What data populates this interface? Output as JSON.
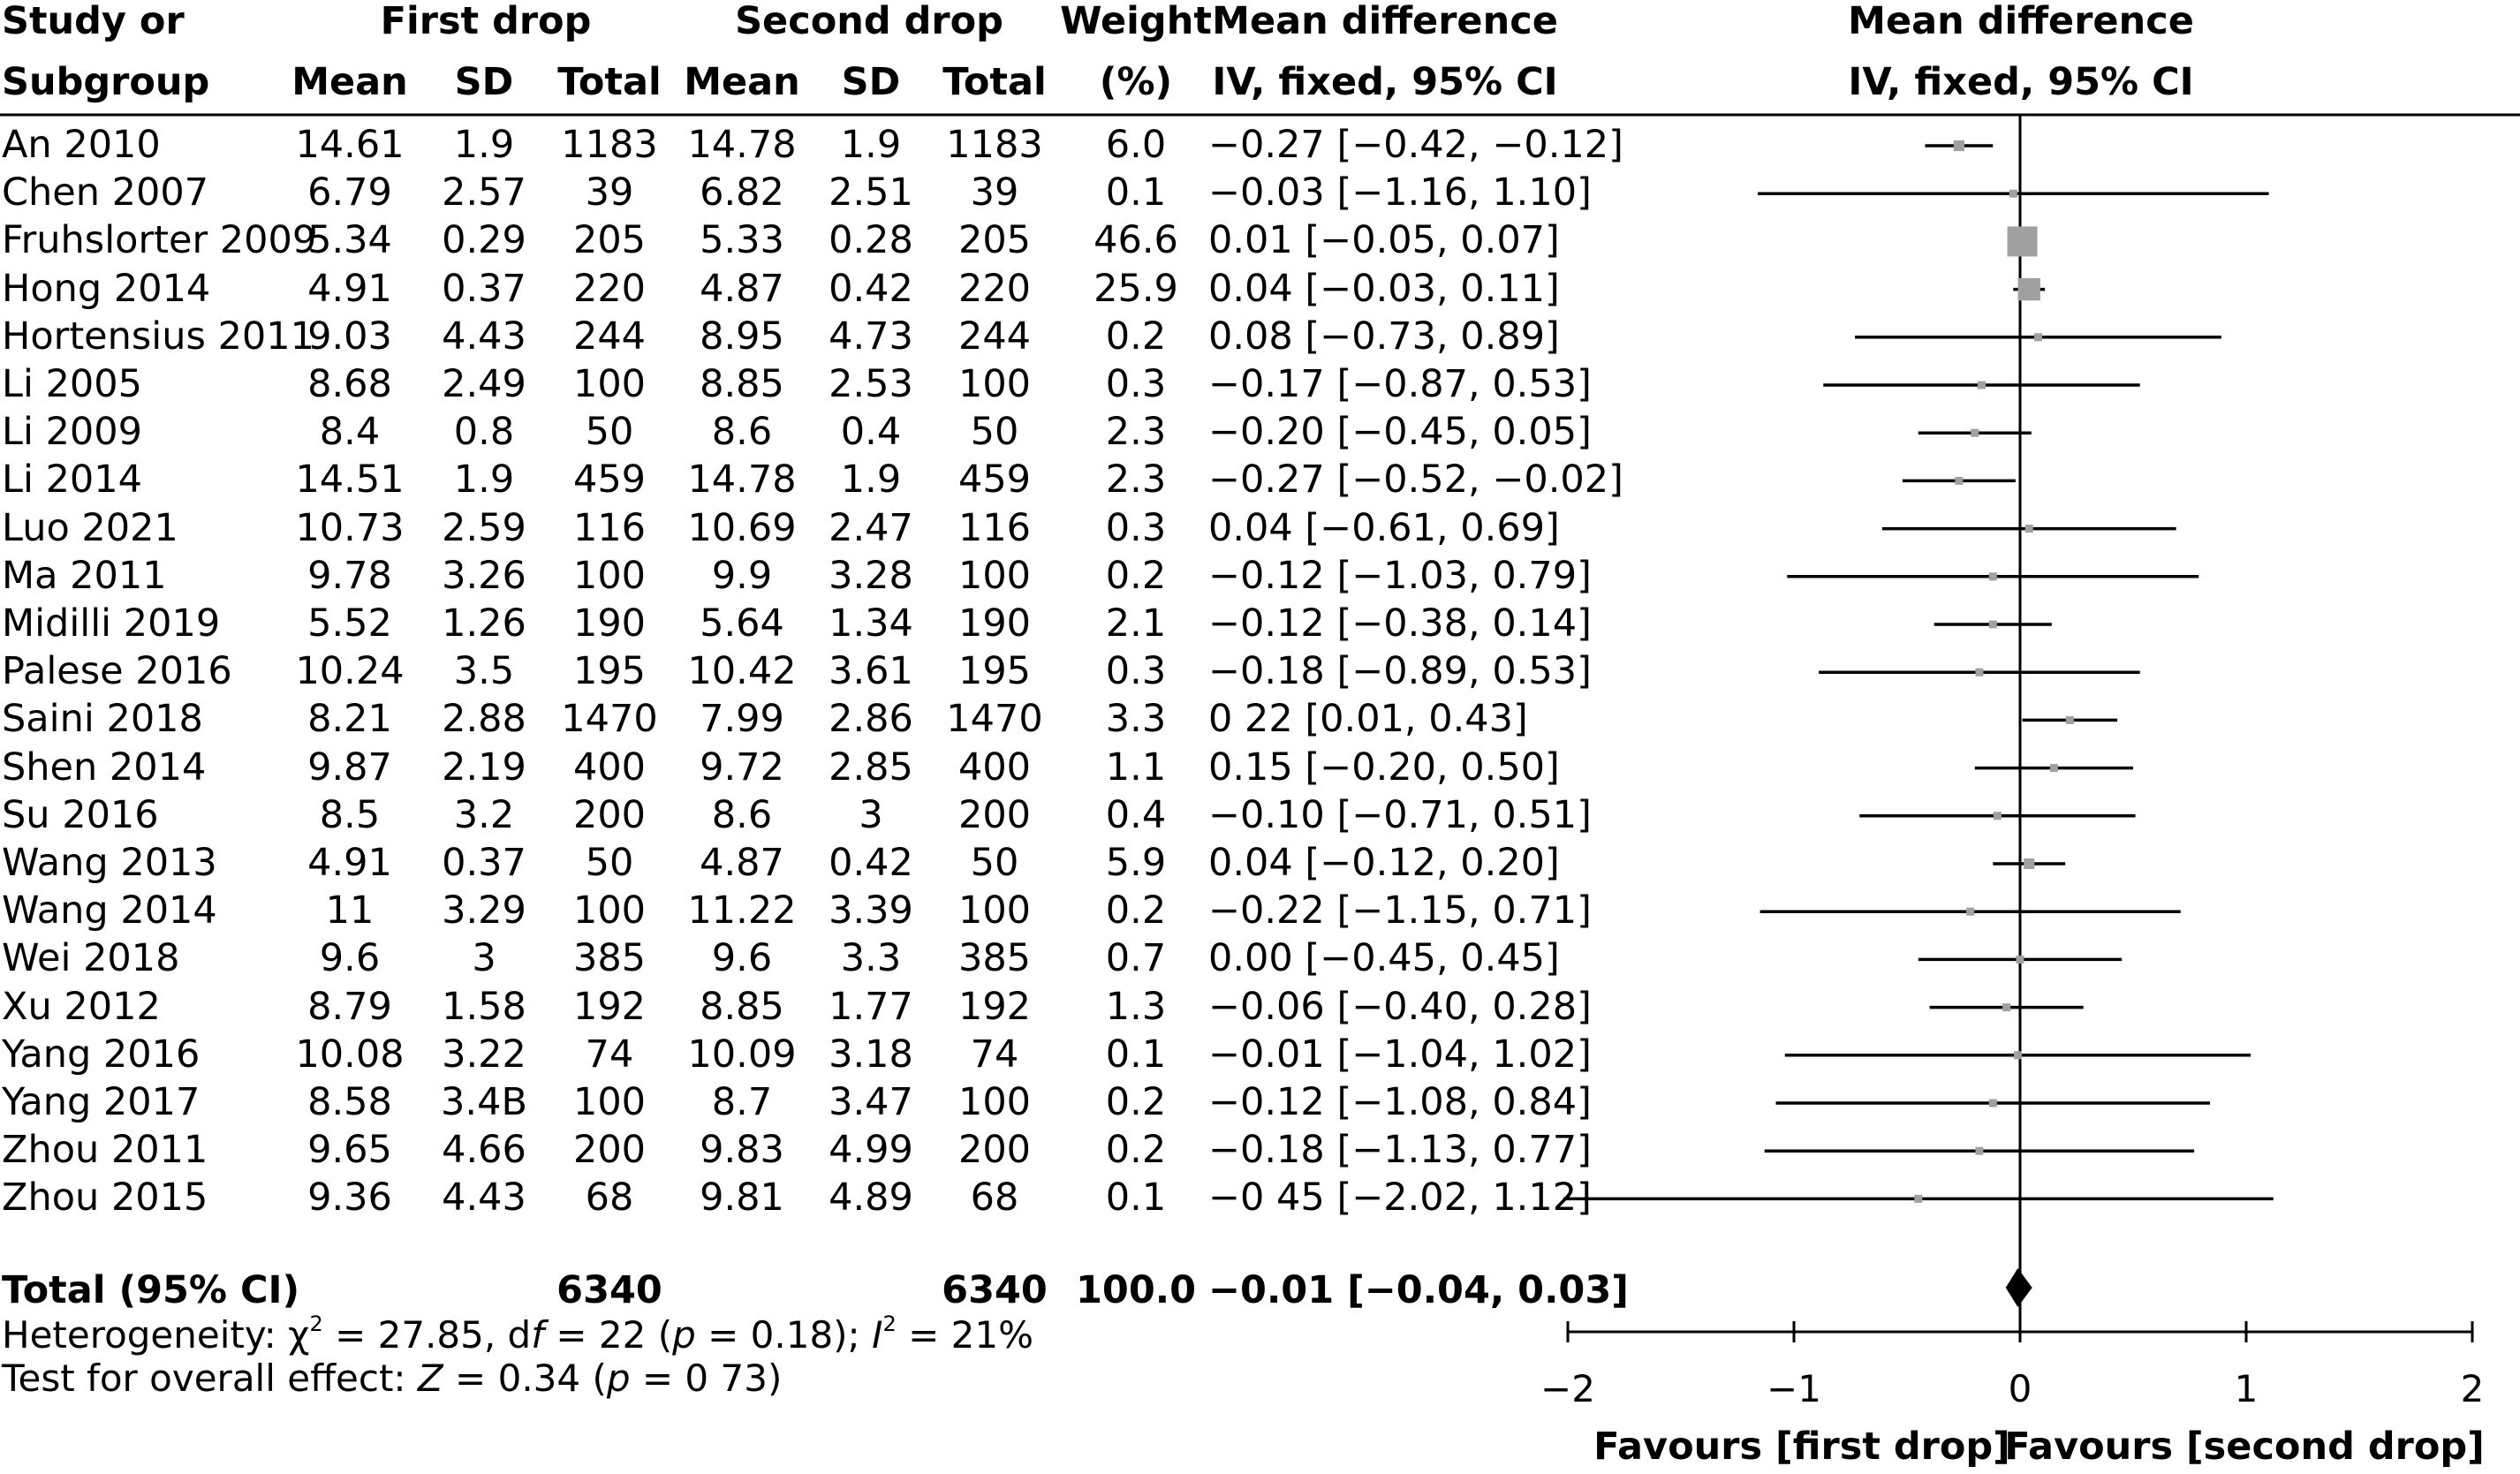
{
  "headers": {
    "study_1": "Study or",
    "study_2": "Subgroup",
    "first_drop": "First drop",
    "second_drop": "Second drop",
    "weight_1": "Weight",
    "weight_2": "(%)",
    "md_1": "Mean difference",
    "md_2": "IV, fixed, 95% CI",
    "plot_1": "Mean difference",
    "plot_2": "IV, fixed, 95% CI",
    "mean_a": "Mean",
    "sd_a": "SD",
    "total_a": "Total",
    "mean_b": "Mean",
    "sd_b": "SD",
    "total_b": "Total"
  },
  "total_row": {
    "label": "Total (95% CI)",
    "total_a": "6340",
    "total_b": "6340",
    "weight": "100.0",
    "ci": "−0.01 [−0.04, 0.03]"
  },
  "heterogeneity": {
    "prefix": "Heterogeneity: χ",
    "chi_sup": "2",
    "chi_value": " = 27.85, d",
    "f_italic": "f",
    "df_value": " = 22 (",
    "p_italic": "p",
    "p_value": " = 0.18); ",
    "i_italic": "I",
    "i_sup": "2",
    "i_value": " = 21%"
  },
  "overall": {
    "prefix": "Test for overall effect: ",
    "z_italic": "Z",
    "z_value": " = 0.34 (",
    "p_italic": "p",
    "p_value": " = 0 73)"
  },
  "axis_labels": {
    "left": "Favours [first drop]",
    "right": "Favours [second drop]"
  },
  "chart_data": {
    "type": "forest",
    "xlim": [
      -2,
      2
    ],
    "xticks": [
      "−2",
      "−1",
      "0",
      "1",
      "2"
    ],
    "colors": {
      "square": "#a0a0a0",
      "line": "#000000",
      "diamond": "#000000"
    },
    "studies": [
      {
        "name": "An 2010",
        "mean1": "14.61",
        "sd1": "1.9",
        "n1": "1183",
        "mean2": "14.78",
        "sd2": "1.9",
        "n2": "1183",
        "weight": "6.0",
        "ci": "−0.27 [−0.42, −0.12]",
        "md": -0.27,
        "lo": -0.42,
        "hi": -0.12
      },
      {
        "name": "Chen 2007",
        "mean1": "6.79",
        "sd1": "2.57",
        "n1": "39",
        "mean2": "6.82",
        "sd2": "2.51",
        "n2": "39",
        "weight": "0.1",
        "ci": "−0.03 [−1.16, 1.10]",
        "md": -0.03,
        "lo": -1.16,
        "hi": 1.1
      },
      {
        "name": "Fruhslorter 2009",
        "mean1": "5.34",
        "sd1": "0.29",
        "n1": "205",
        "mean2": "5.33",
        "sd2": "0.28",
        "n2": "205",
        "weight": "46.6",
        "ci": "0.01 [−0.05, 0.07]",
        "md": 0.01,
        "lo": -0.05,
        "hi": 0.07
      },
      {
        "name": "Hong 2014",
        "mean1": "4.91",
        "sd1": "0.37",
        "n1": "220",
        "mean2": "4.87",
        "sd2": "0.42",
        "n2": "220",
        "weight": "25.9",
        "ci": "0.04 [−0.03, 0.11]",
        "md": 0.04,
        "lo": -0.03,
        "hi": 0.11
      },
      {
        "name": "Hortensius 2011",
        "mean1": "9.03",
        "sd1": "4.43",
        "n1": "244",
        "mean2": "8.95",
        "sd2": "4.73",
        "n2": "244",
        "weight": "0.2",
        "ci": "0.08 [−0.73, 0.89]",
        "md": 0.08,
        "lo": -0.73,
        "hi": 0.89
      },
      {
        "name": "Li 2005",
        "mean1": "8.68",
        "sd1": "2.49",
        "n1": "100",
        "mean2": "8.85",
        "sd2": "2.53",
        "n2": "100",
        "weight": "0.3",
        "ci": "−0.17 [−0.87, 0.53]",
        "md": -0.17,
        "lo": -0.87,
        "hi": 0.53
      },
      {
        "name": "Li 2009",
        "mean1": "8.4",
        "sd1": "0.8",
        "n1": "50",
        "mean2": "8.6",
        "sd2": "0.4",
        "n2": "50",
        "weight": "2.3",
        "ci": "−0.20 [−0.45, 0.05]",
        "md": -0.2,
        "lo": -0.45,
        "hi": 0.05
      },
      {
        "name": "Li 2014",
        "mean1": "14.51",
        "sd1": "1.9",
        "n1": "459",
        "mean2": "14.78",
        "sd2": "1.9",
        "n2": "459",
        "weight": "2.3",
        "ci": "−0.27 [−0.52, −0.02]",
        "md": -0.27,
        "lo": -0.52,
        "hi": -0.02
      },
      {
        "name": "Luo 2021",
        "mean1": "10.73",
        "sd1": "2.59",
        "n1": "116",
        "mean2": "10.69",
        "sd2": "2.47",
        "n2": "116",
        "weight": "0.3",
        "ci": "0.04 [−0.61, 0.69]",
        "md": 0.04,
        "lo": -0.61,
        "hi": 0.69
      },
      {
        "name": "Ma 2011",
        "mean1": "9.78",
        "sd1": "3.26",
        "n1": "100",
        "mean2": "9.9",
        "sd2": "3.28",
        "n2": "100",
        "weight": "0.2",
        "ci": "−0.12 [−1.03, 0.79]",
        "md": -0.12,
        "lo": -1.03,
        "hi": 0.79
      },
      {
        "name": "Midilli 2019",
        "mean1": "5.52",
        "sd1": "1.26",
        "n1": "190",
        "mean2": "5.64",
        "sd2": "1.34",
        "n2": "190",
        "weight": "2.1",
        "ci": "−0.12 [−0.38, 0.14]",
        "md": -0.12,
        "lo": -0.38,
        "hi": 0.14
      },
      {
        "name": "Palese 2016",
        "mean1": "10.24",
        "sd1": "3.5",
        "n1": "195",
        "mean2": "10.42",
        "sd2": "3.61",
        "n2": "195",
        "weight": "0.3",
        "ci": "−0.18 [−0.89, 0.53]",
        "md": -0.18,
        "lo": -0.89,
        "hi": 0.53
      },
      {
        "name": "Saini 2018",
        "mean1": "8.21",
        "sd1": "2.88",
        "n1": "1470",
        "mean2": "7.99",
        "sd2": "2.86",
        "n2": "1470",
        "weight": "3.3",
        "ci": "0 22 [0.01, 0.43]",
        "md": 0.22,
        "lo": 0.01,
        "hi": 0.43
      },
      {
        "name": "Shen 2014",
        "mean1": "9.87",
        "sd1": "2.19",
        "n1": "400",
        "mean2": "9.72",
        "sd2": "2.85",
        "n2": "400",
        "weight": "1.1",
        "ci": "0.15 [−0.20, 0.50]",
        "md": 0.15,
        "lo": -0.2,
        "hi": 0.5
      },
      {
        "name": "Su 2016",
        "mean1": "8.5",
        "sd1": "3.2",
        "n1": "200",
        "mean2": "8.6",
        "sd2": "3",
        "n2": "200",
        "weight": "0.4",
        "ci": "−0.10 [−0.71, 0.51]",
        "md": -0.1,
        "lo": -0.71,
        "hi": 0.51
      },
      {
        "name": "Wang 2013",
        "mean1": "4.91",
        "sd1": "0.37",
        "n1": "50",
        "mean2": "4.87",
        "sd2": "0.42",
        "n2": "50",
        "weight": "5.9",
        "ci": "0.04 [−0.12, 0.20]",
        "md": 0.04,
        "lo": -0.12,
        "hi": 0.2
      },
      {
        "name": "Wang 2014",
        "mean1": "11",
        "sd1": "3.29",
        "n1": "100",
        "mean2": "11.22",
        "sd2": "3.39",
        "n2": "100",
        "weight": "0.2",
        "ci": "−0.22 [−1.15, 0.71]",
        "md": -0.22,
        "lo": -1.15,
        "hi": 0.71
      },
      {
        "name": "Wei 2018",
        "mean1": "9.6",
        "sd1": "3",
        "n1": "385",
        "mean2": "9.6",
        "sd2": "3.3",
        "n2": "385",
        "weight": "0.7",
        "ci": "0.00 [−0.45, 0.45]",
        "md": 0.0,
        "lo": -0.45,
        "hi": 0.45
      },
      {
        "name": "Xu 2012",
        "mean1": "8.79",
        "sd1": "1.58",
        "n1": "192",
        "mean2": "8.85",
        "sd2": "1.77",
        "n2": "192",
        "weight": "1.3",
        "ci": "−0.06 [−0.40, 0.28]",
        "md": -0.06,
        "lo": -0.4,
        "hi": 0.28
      },
      {
        "name": "Yang 2016",
        "mean1": "10.08",
        "sd1": "3.22",
        "n1": "74",
        "mean2": "10.09",
        "sd2": "3.18",
        "n2": "74",
        "weight": "0.1",
        "ci": "−0.01 [−1.04, 1.02]",
        "md": -0.01,
        "lo": -1.04,
        "hi": 1.02
      },
      {
        "name": "Yang 2017",
        "mean1": "8.58",
        "sd1": "3.4B",
        "n1": "100",
        "mean2": "8.7",
        "sd2": "3.47",
        "n2": "100",
        "weight": "0.2",
        "ci": "−0.12 [−1.08, 0.84]",
        "md": -0.12,
        "lo": -1.08,
        "hi": 0.84
      },
      {
        "name": "Zhou 2011",
        "mean1": "9.65",
        "sd1": "4.66",
        "n1": "200",
        "mean2": "9.83",
        "sd2": "4.99",
        "n2": "200",
        "weight": "0.2",
        "ci": "−0.18 [−1.13, 0.77]",
        "md": -0.18,
        "lo": -1.13,
        "hi": 0.77
      },
      {
        "name": "Zhou 2015",
        "mean1": "9.36",
        "sd1": "4.43",
        "n1": "68",
        "mean2": "9.81",
        "sd2": "4.89",
        "n2": "68",
        "weight": "0.1",
        "ci": "−0 45 [−2.02, 1.12]",
        "md": -0.45,
        "lo": -2.02,
        "hi": 1.12
      }
    ],
    "total": {
      "md": -0.01,
      "lo": -0.04,
      "hi": 0.03
    }
  }
}
